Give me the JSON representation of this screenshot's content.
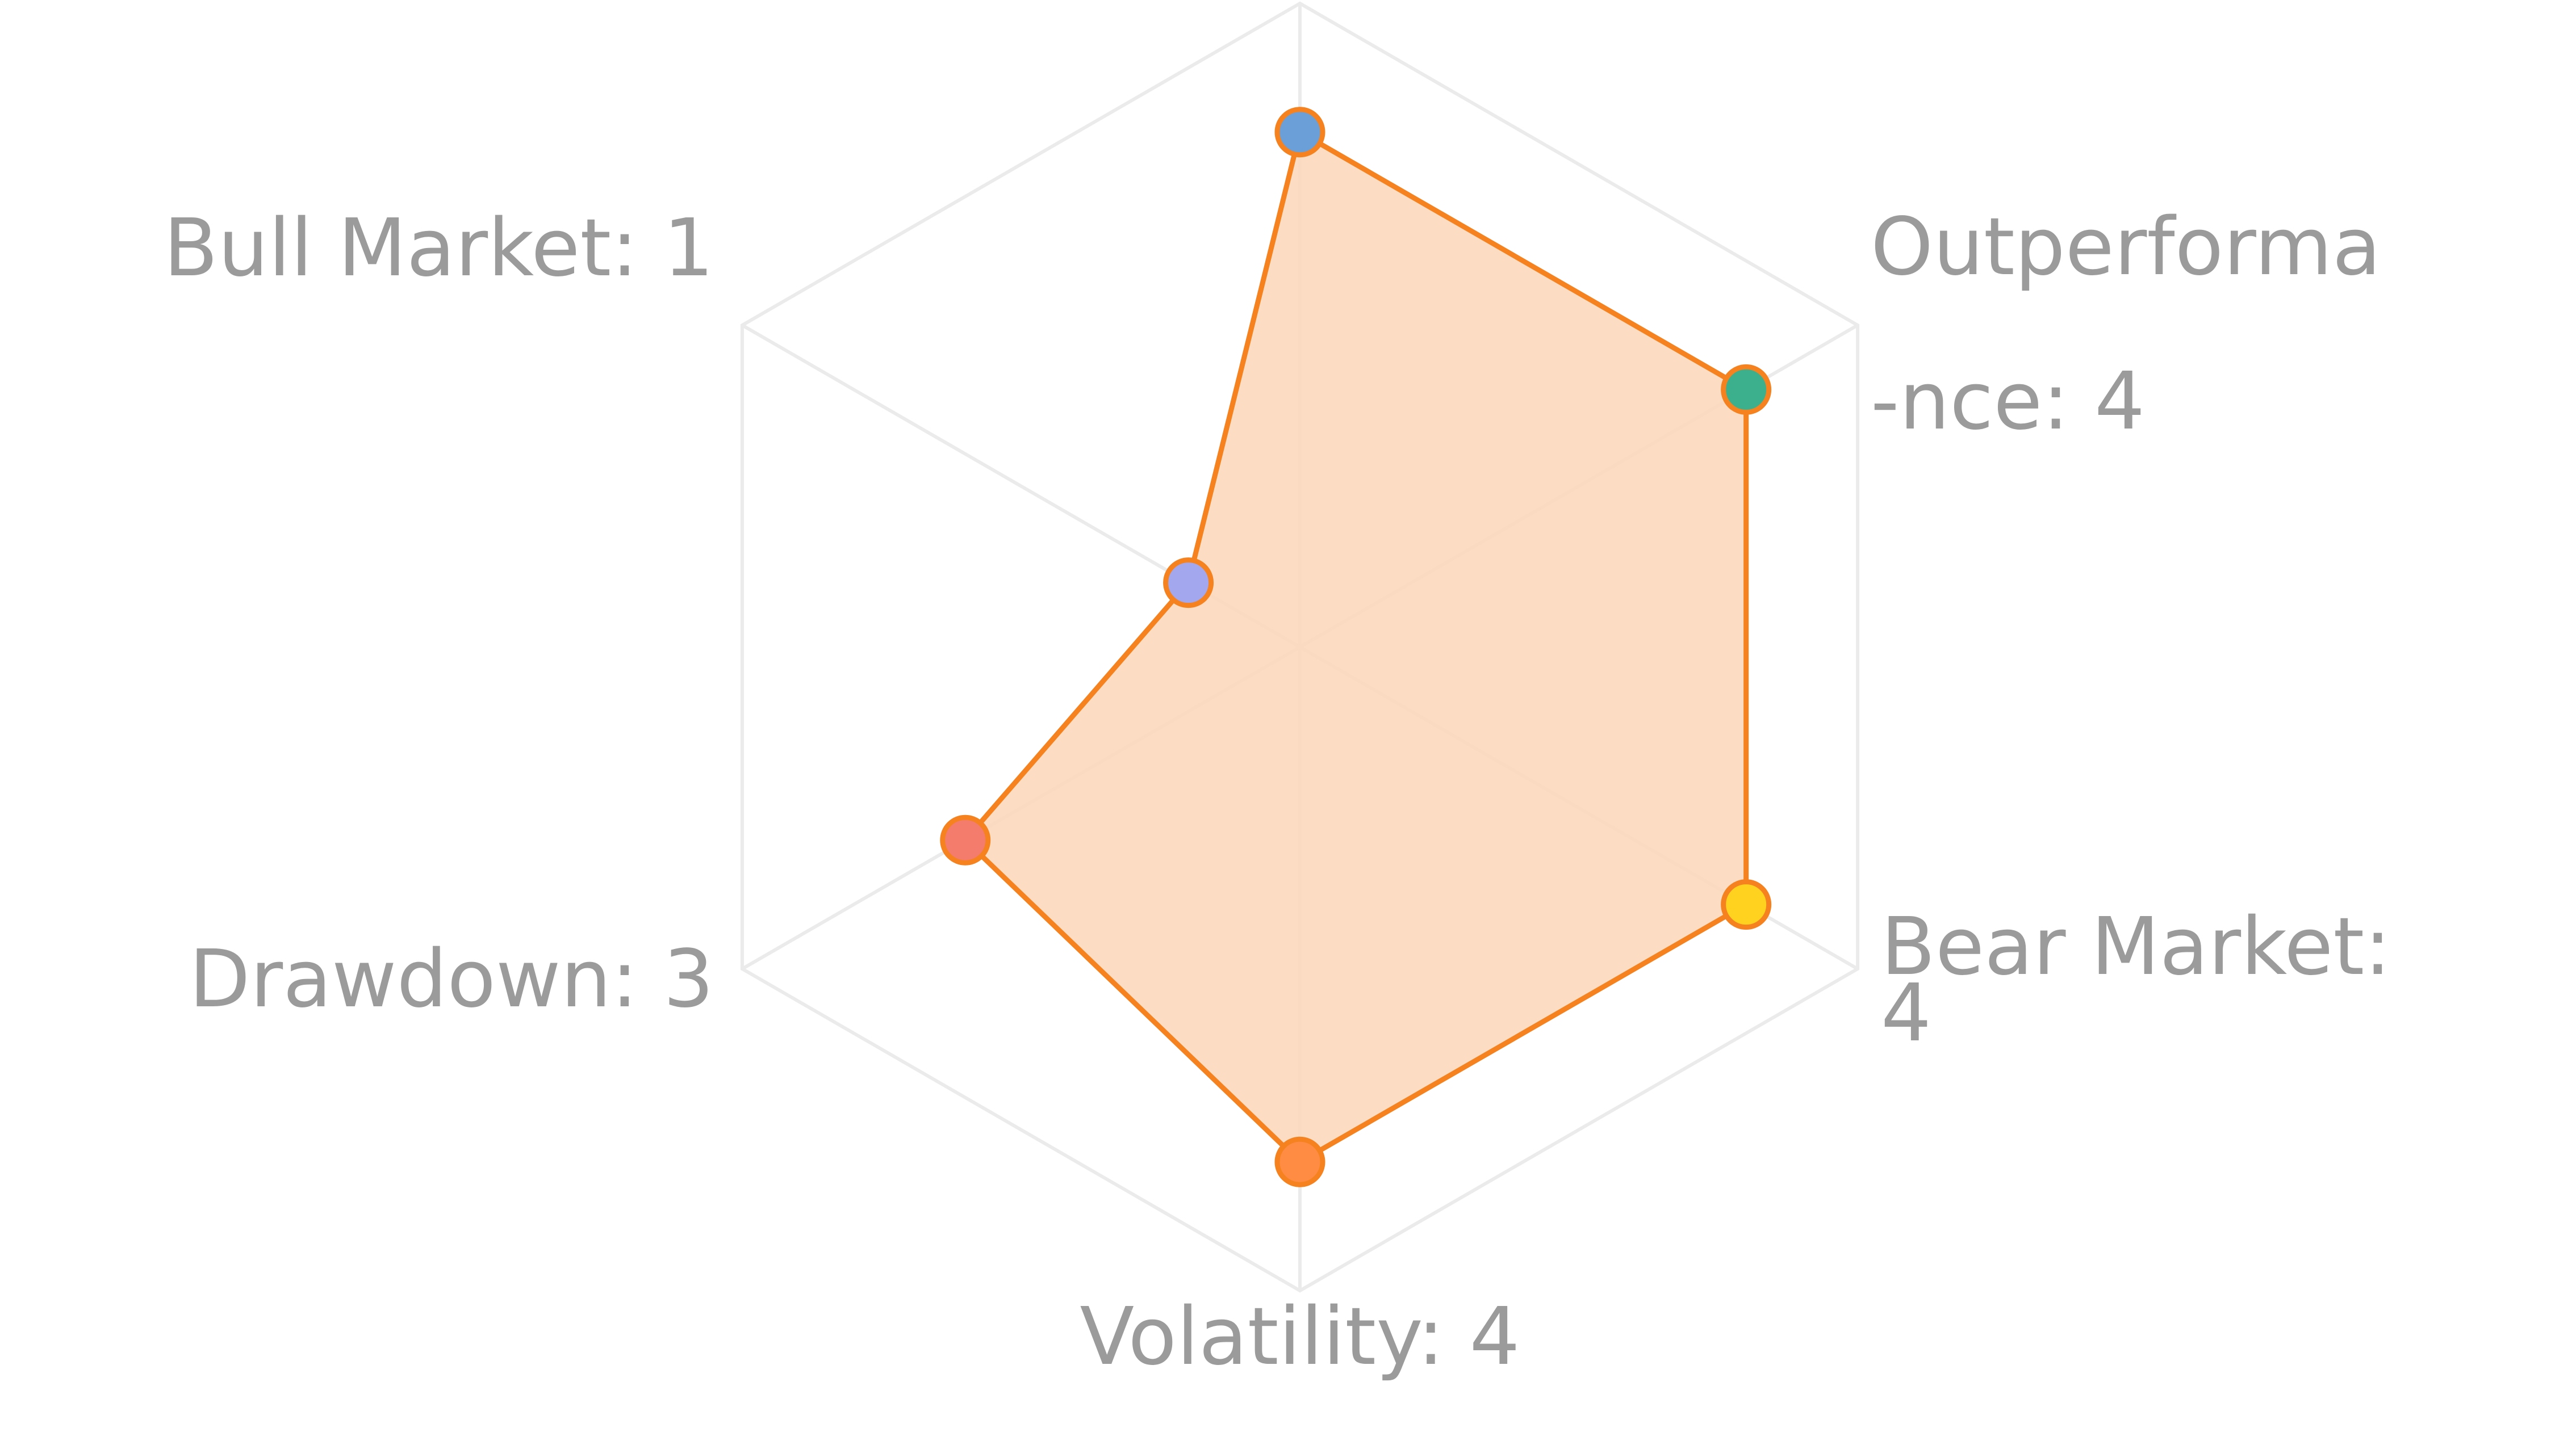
{
  "chart_data": {
    "type": "radar",
    "categories": [
      null,
      "Outperforma\n-nce: 4",
      "Bear Market:\n4",
      "Volatility: 4",
      "Drawdown: 3",
      "Bull Market: 1"
    ],
    "series": [
      {
        "color": "#f5821f",
        "fill": "#fcd9bc",
        "values": [
          4,
          4,
          4,
          4,
          3,
          1
        ],
        "point_colors": [
          "#6a9fd8",
          "#3cb08c",
          "#ffd21f",
          "#ff8c42",
          "#f47c6c",
          "#a3a8ee"
        ]
      }
    ],
    "rlim": [
      0,
      5
    ],
    "grid": true
  }
}
